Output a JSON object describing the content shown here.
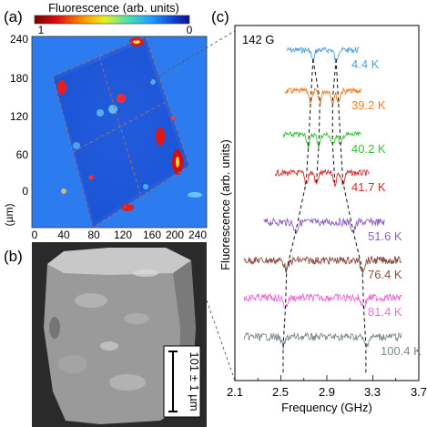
{
  "panel_labels": {
    "a": "(a)",
    "b": "(b)",
    "c": "(c)"
  },
  "colorbar": {
    "title": "Fluorescence (arb. units)",
    "min_label": "1",
    "max_label": "0"
  },
  "map": {
    "y_ticks": [
      "240",
      "180",
      "120",
      "60",
      "0"
    ],
    "x_ticks": [
      "0",
      "40",
      "80",
      "120",
      "160",
      "200",
      "240"
    ],
    "unit": "(µm)"
  },
  "sem": {
    "scale_label": "101 ± 1 µm"
  },
  "spectra": {
    "field_label": "142 G",
    "xlabel": "Frequency (GHz)",
    "ylabel": "Fluorescence (arb. units)",
    "x_ticks": [
      "2.1",
      "2.5",
      "2.9",
      "3.3",
      "3.7"
    ]
  },
  "chart_data": {
    "type": "line",
    "title": "",
    "xlabel": "Frequency (GHz)",
    "ylabel": "Fluorescence (arb. units)",
    "xlim": [
      2.1,
      3.7
    ],
    "field": "142 G",
    "series": [
      {
        "name": "4.4 K",
        "color": "#4b9fdc",
        "x_range": [
          2.55,
          3.18
        ],
        "dips": [
          2.78,
          2.98
        ]
      },
      {
        "name": "39.2 K",
        "color": "#f07d1f",
        "x_range": [
          2.53,
          3.2
        ],
        "dips": [
          2.76,
          2.84,
          2.95,
          3.0
        ]
      },
      {
        "name": "40.2 K",
        "color": "#33c12f",
        "x_range": [
          2.52,
          3.2
        ],
        "dips": [
          2.74,
          2.83,
          2.95,
          3.02
        ]
      },
      {
        "name": "41.7 K",
        "color": "#d42828",
        "x_range": [
          2.45,
          3.27
        ],
        "dips": [
          2.72,
          2.81,
          2.97,
          3.04
        ]
      },
      {
        "name": "51.6 K",
        "color": "#8e5fc2",
        "x_range": [
          2.35,
          3.4
        ],
        "dips": [
          2.63,
          3.13
        ]
      },
      {
        "name": "76.4 K",
        "color": "#8b4a3f",
        "x_range": [
          2.18,
          3.55
        ],
        "dips": [
          2.55,
          3.21
        ]
      },
      {
        "name": "81.4 K",
        "color": "#e86fd1",
        "x_range": [
          2.18,
          3.55
        ],
        "dips": [
          2.54,
          3.22
        ]
      },
      {
        "name": "100.4 K",
        "color": "#7c8a8e",
        "x_range": [
          2.18,
          3.55
        ],
        "dips": [
          2.52,
          3.24
        ]
      }
    ]
  }
}
